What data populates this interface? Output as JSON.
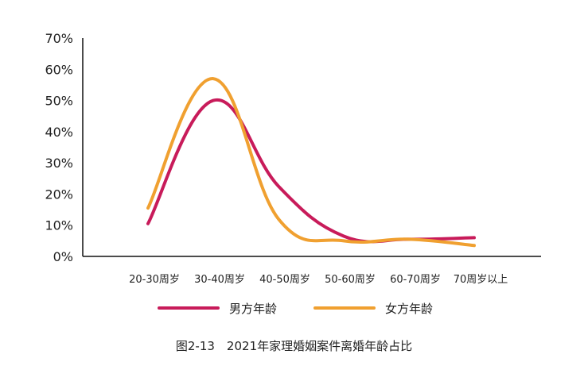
{
  "chart_data": {
    "type": "line",
    "categories": [
      "20-30周岁",
      "30-40周岁",
      "40-50周岁",
      "50-60周岁",
      "60-70周岁",
      "70周岁以上"
    ],
    "series": [
      {
        "name": "男方年龄",
        "color": "#C81B5A",
        "values": [
          10.5,
          50,
          22.5,
          6.5,
          5.5,
          6
        ]
      },
      {
        "name": "女方年龄",
        "color": "#F0A030",
        "values": [
          15.5,
          57,
          12,
          5,
          5.5,
          3.5
        ]
      }
    ],
    "yticks": [
      "0%",
      "10%",
      "20%",
      "30%",
      "40%",
      "50%",
      "60%",
      "70%"
    ],
    "ylim": [
      0,
      70
    ],
    "grid": false,
    "legend_position": "bottom"
  },
  "caption": "图2-13　2021年家理婚姻案件离婚年龄占比"
}
